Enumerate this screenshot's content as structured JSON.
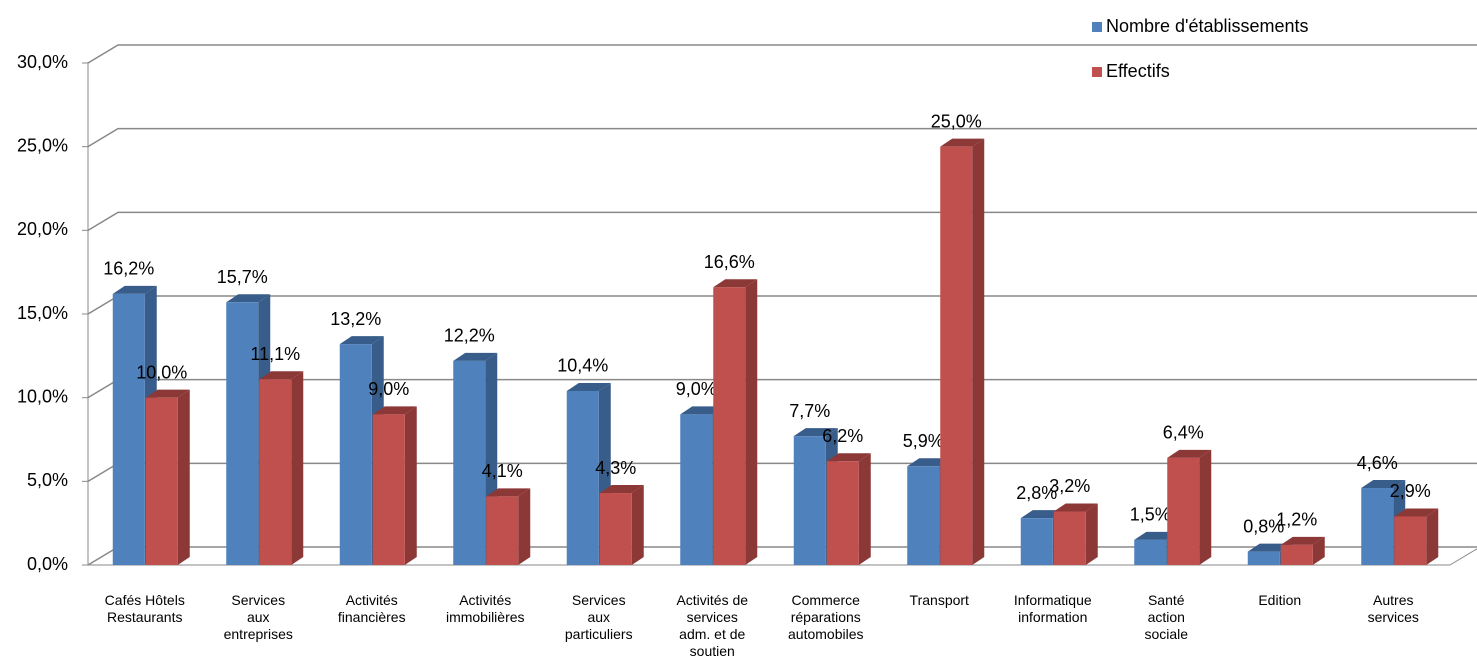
{
  "chart_data": {
    "type": "bar3d",
    "categories": [
      "Cafés Hôtels\nRestaurants",
      "Services\naux\nentreprises",
      "Activités\nfinancières",
      "Activités\nimmobilières",
      "Services\naux\nparticuliers",
      "Activités de\nservices\nadm. et de\nsoutien",
      "Commerce\nréparations\nautomobiles",
      "Transport",
      "Informatique\ninformation",
      "Santé\naction\nsociale",
      "Edition",
      "Autres\nservices"
    ],
    "series": [
      {
        "name": "Nombre d'établissements",
        "color": "#4f81bd",
        "side": "#385d8a",
        "values": [
          16.2,
          15.7,
          13.2,
          12.2,
          10.4,
          9.0,
          7.7,
          5.9,
          2.8,
          1.5,
          0.8,
          4.6
        ],
        "value_labels": [
          "16,2%",
          "15,7%",
          "13,2%",
          "12,2%",
          "10,4%",
          "9,0%",
          "7,7%",
          "5,9%",
          "2,8%",
          "1,5%",
          "0,8%",
          "4,6%"
        ]
      },
      {
        "name": "Effectifs",
        "color": "#c0504d",
        "side": "#8c3836",
        "values": [
          10.0,
          11.1,
          9.0,
          4.1,
          4.3,
          16.6,
          6.2,
          25.0,
          3.2,
          6.4,
          1.2,
          2.9
        ],
        "value_labels": [
          "10,0%",
          "11,1%",
          "9,0%",
          "4,1%",
          "4,3%",
          "16,6%",
          "6,2%",
          "25,0%",
          "3,2%",
          "6,4%",
          "1,2%",
          "2,9%"
        ]
      }
    ],
    "ylim": [
      0,
      30
    ],
    "yticks": [
      {
        "value": 0,
        "label": "0,0%"
      },
      {
        "value": 5,
        "label": "5,0%"
      },
      {
        "value": 10,
        "label": "10,0%"
      },
      {
        "value": 15,
        "label": "15,0%"
      },
      {
        "value": 20,
        "label": "20,0%"
      },
      {
        "value": 25,
        "label": "25,0%"
      },
      {
        "value": 30,
        "label": "30,0%"
      }
    ],
    "grid": true,
    "legend": "top-right"
  }
}
